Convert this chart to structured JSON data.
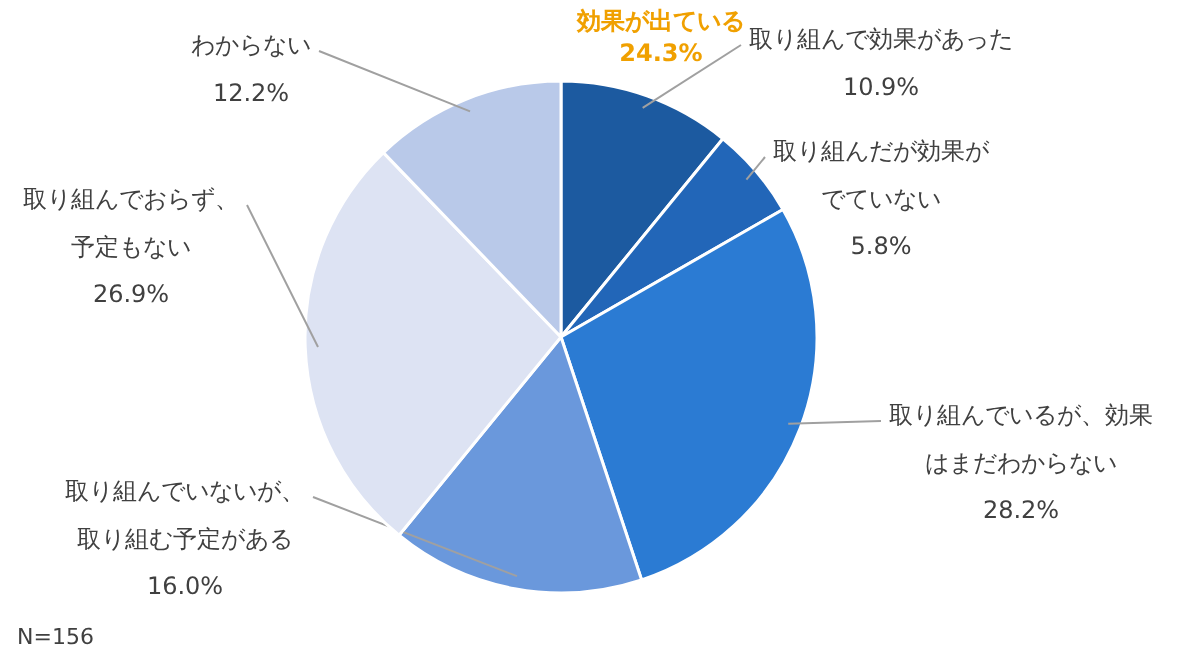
{
  "chart_data": {
    "type": "pie",
    "categories": [
      "取り組んで効果があった",
      "取り組んだが効果がでていない",
      "取り組んでいるが、効果はまだわからない",
      "取り組んでいないが、取り組む予定がある",
      "取り組んでおらず、予定もない",
      "わからない"
    ],
    "values": [
      10.9,
      5.8,
      28.2,
      16.0,
      26.9,
      12.2
    ],
    "value_labels": [
      "10.9%",
      "5.8%",
      "28.2%",
      "16.0%",
      "26.9%",
      "12.2%"
    ],
    "colors": [
      "#1c5aa0",
      "#2266b8",
      "#2b7bd3",
      "#6a98dc",
      "#dde3f3",
      "#b9c9e9"
    ],
    "annotations": [
      "効果が出ている\n24.3%",
      "N=156"
    ]
  }
}
